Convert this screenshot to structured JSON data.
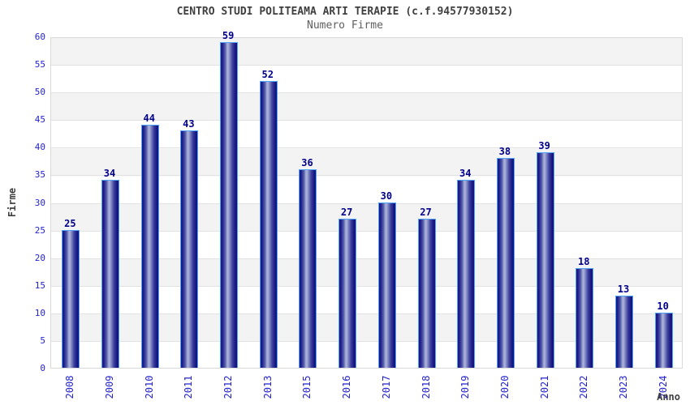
{
  "header": {
    "title": "CENTRO STUDI POLITEAMA ARTI TERAPIE (c.f.94577930152)",
    "subtitle": "Numero Firme"
  },
  "chart_data": {
    "type": "bar",
    "title": "CENTRO STUDI POLITEAMA ARTI TERAPIE (c.f.94577930152)",
    "subtitle": "Numero Firme",
    "xlabel": "Anno",
    "ylabel": "Firme",
    "categories": [
      "2008",
      "2009",
      "2010",
      "2011",
      "2012",
      "2013",
      "2015",
      "2016",
      "2017",
      "2018",
      "2019",
      "2020",
      "2021",
      "2022",
      "2023",
      "2024"
    ],
    "values": [
      25,
      34,
      44,
      43,
      59,
      52,
      36,
      27,
      30,
      27,
      34,
      38,
      39,
      18,
      13,
      10
    ],
    "ylim": [
      0,
      60
    ],
    "yticks": [
      0,
      5,
      10,
      15,
      20,
      25,
      30,
      35,
      40,
      45,
      50,
      55,
      60
    ],
    "grid": "horizontal alternating bands, gridlines every 5",
    "legend": "none",
    "colors": {
      "bar_core": "#181884",
      "bar_highlight": "#aeb4da",
      "bar_border": "#4fa3f7",
      "value_label": "#00008b",
      "axis_label_blue": "#2323cd",
      "title_gray": "#3f3f3f",
      "subtitle_gray": "#5e5e5e",
      "band_gray": "#f3f3f3",
      "gridline": "#e2e2e2",
      "plot_border": "#d9d9d9",
      "background": "#ffffff"
    }
  }
}
